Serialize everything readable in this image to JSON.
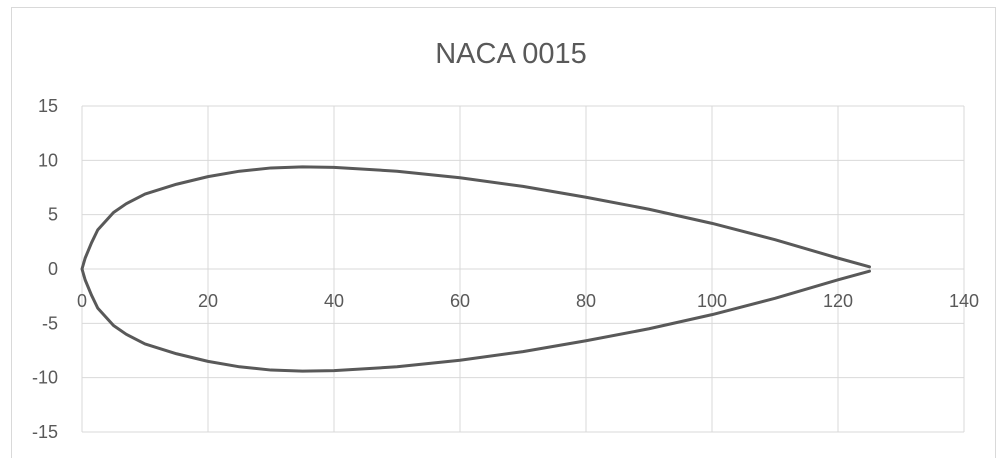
{
  "chart_data": {
    "type": "scatter",
    "title": "NACA 0015",
    "xlabel": "",
    "ylabel": "",
    "xlim": [
      0,
      140
    ],
    "ylim": [
      -15,
      15
    ],
    "x_ticks": [
      0,
      20,
      40,
      60,
      80,
      100,
      120,
      140
    ],
    "y_ticks": [
      15,
      10,
      5,
      0,
      -5,
      -10,
      -15
    ],
    "grid": true,
    "legend": "none",
    "line_color": "#595959",
    "grid_color": "#d9d9d9",
    "series": [
      {
        "points": [
          [
            125,
            0.2
          ],
          [
            120,
            1.0
          ],
          [
            110,
            2.7
          ],
          [
            100,
            4.2
          ],
          [
            90,
            5.5
          ],
          [
            80,
            6.6
          ],
          [
            70,
            7.6
          ],
          [
            60,
            8.4
          ],
          [
            50,
            9.0
          ],
          [
            40,
            9.35
          ],
          [
            35,
            9.4
          ],
          [
            30,
            9.3
          ],
          [
            25,
            9.0
          ],
          [
            20,
            8.5
          ],
          [
            15,
            7.8
          ],
          [
            10,
            6.9
          ],
          [
            7,
            6.0
          ],
          [
            5,
            5.2
          ],
          [
            2.5,
            3.6
          ],
          [
            1.5,
            2.4
          ],
          [
            0.5,
            1.0
          ],
          [
            0,
            0
          ],
          [
            0.5,
            -1.0
          ],
          [
            1.5,
            -2.4
          ],
          [
            2.5,
            -3.6
          ],
          [
            5,
            -5.2
          ],
          [
            7,
            -6.0
          ],
          [
            10,
            -6.9
          ],
          [
            15,
            -7.8
          ],
          [
            20,
            -8.5
          ],
          [
            25,
            -9.0
          ],
          [
            30,
            -9.3
          ],
          [
            35,
            -9.4
          ],
          [
            40,
            -9.35
          ],
          [
            50,
            -9.0
          ],
          [
            60,
            -8.4
          ],
          [
            70,
            -7.6
          ],
          [
            80,
            -6.6
          ],
          [
            90,
            -5.5
          ],
          [
            100,
            -4.2
          ],
          [
            110,
            -2.7
          ],
          [
            120,
            -1.0
          ],
          [
            125,
            -0.2
          ]
        ]
      }
    ]
  }
}
